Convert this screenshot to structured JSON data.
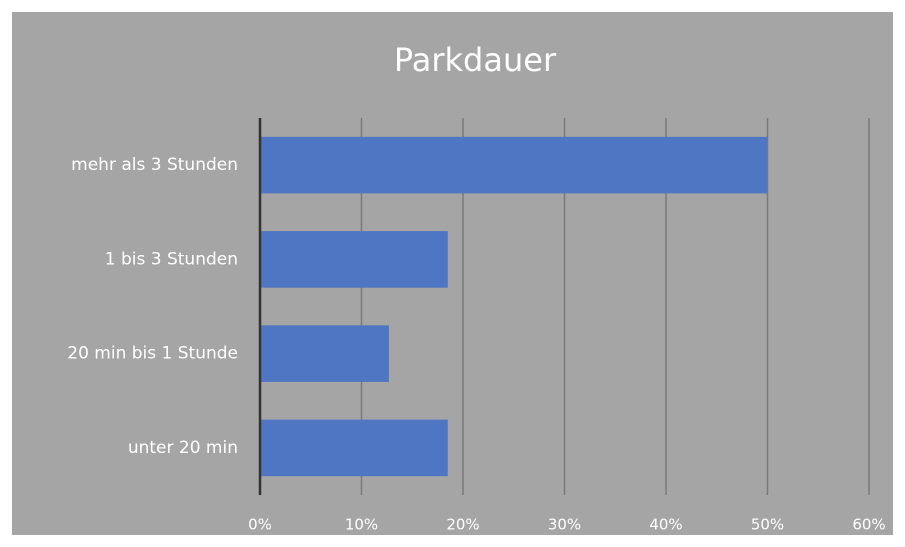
{
  "chart_data": {
    "type": "bar",
    "orientation": "horizontal",
    "title": "Parkdauer",
    "categories": [
      "mehr als 3 Stunden",
      "1 bis 3 Stunden",
      "20 min bis 1 Stunde",
      "unter 20 min"
    ],
    "values": [
      50,
      18.5,
      12.7,
      18.5
    ],
    "color": "#4f76c2",
    "xlim": [
      0,
      60
    ],
    "xticks": [
      {
        "value": 0,
        "label": "0%"
      },
      {
        "value": 10,
        "label": "10%"
      },
      {
        "value": 20,
        "label": "20%"
      },
      {
        "value": 30,
        "label": "30%"
      },
      {
        "value": 40,
        "label": "40%"
      },
      {
        "value": 50,
        "label": "50%"
      },
      {
        "value": 60,
        "label": "60%"
      }
    ],
    "grid": true
  }
}
